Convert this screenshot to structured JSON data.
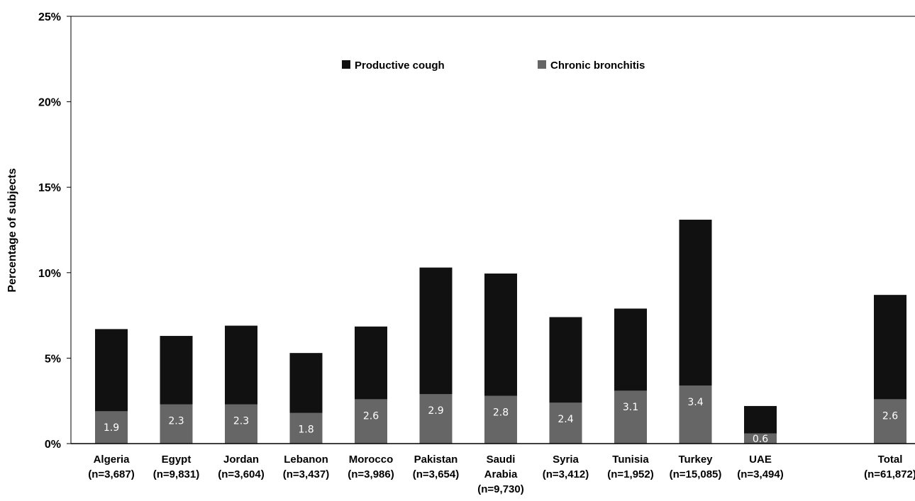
{
  "chart_data": {
    "type": "bar",
    "stacked": true,
    "categories": [
      [
        "Algeria",
        "(n=3,687)"
      ],
      [
        "Egypt",
        "(n=9,831)"
      ],
      [
        "Jordan",
        "(n=3,604)"
      ],
      [
        "Lebanon",
        "(n=3,437)"
      ],
      [
        "Morocco",
        "(n=3,986)"
      ],
      [
        "Pakistan",
        "(n=3,654)"
      ],
      [
        "Saudi",
        "Arabia",
        "(n=9,730)"
      ],
      [
        "Syria",
        "(n=3,412)"
      ],
      [
        "Tunisia",
        "(n=1,952)"
      ],
      [
        "Turkey",
        "(n=15,085)"
      ],
      [
        "UAE",
        "(n=3,494)"
      ],
      [],
      [
        "Total",
        "(n=61,872)"
      ]
    ],
    "series": [
      {
        "name": "Chronic bronchitis",
        "color": "#666666",
        "values": [
          1.9,
          2.3,
          2.3,
          1.8,
          2.6,
          2.9,
          2.8,
          2.4,
          3.1,
          3.4,
          0.6,
          null,
          2.6
        ],
        "labels": [
          "1.9",
          "2.3",
          "2.3",
          "1.8",
          "2.6",
          "2.9",
          "2.8",
          "2.4",
          "3.1",
          "3.4",
          "0.6",
          "",
          "2.6"
        ]
      },
      {
        "name": "Productive cough",
        "color": "#111111",
        "totals": [
          6.7,
          6.3,
          6.9,
          5.3,
          6.85,
          10.3,
          9.95,
          7.4,
          7.9,
          13.1,
          2.2,
          null,
          8.7
        ]
      }
    ],
    "ylabel": "Percentage of subjects",
    "ylim": [
      0,
      25
    ],
    "yticks": [
      "0%",
      "5%",
      "10%",
      "15%",
      "20%",
      "25%"
    ],
    "ytick_values": [
      0,
      5,
      10,
      15,
      20,
      25
    ],
    "grid": false,
    "legend": {
      "position": "top-center",
      "items": [
        {
          "label": "Productive cough",
          "color": "#111111"
        },
        {
          "label": "Chronic bronchitis",
          "color": "#666666"
        }
      ]
    }
  }
}
